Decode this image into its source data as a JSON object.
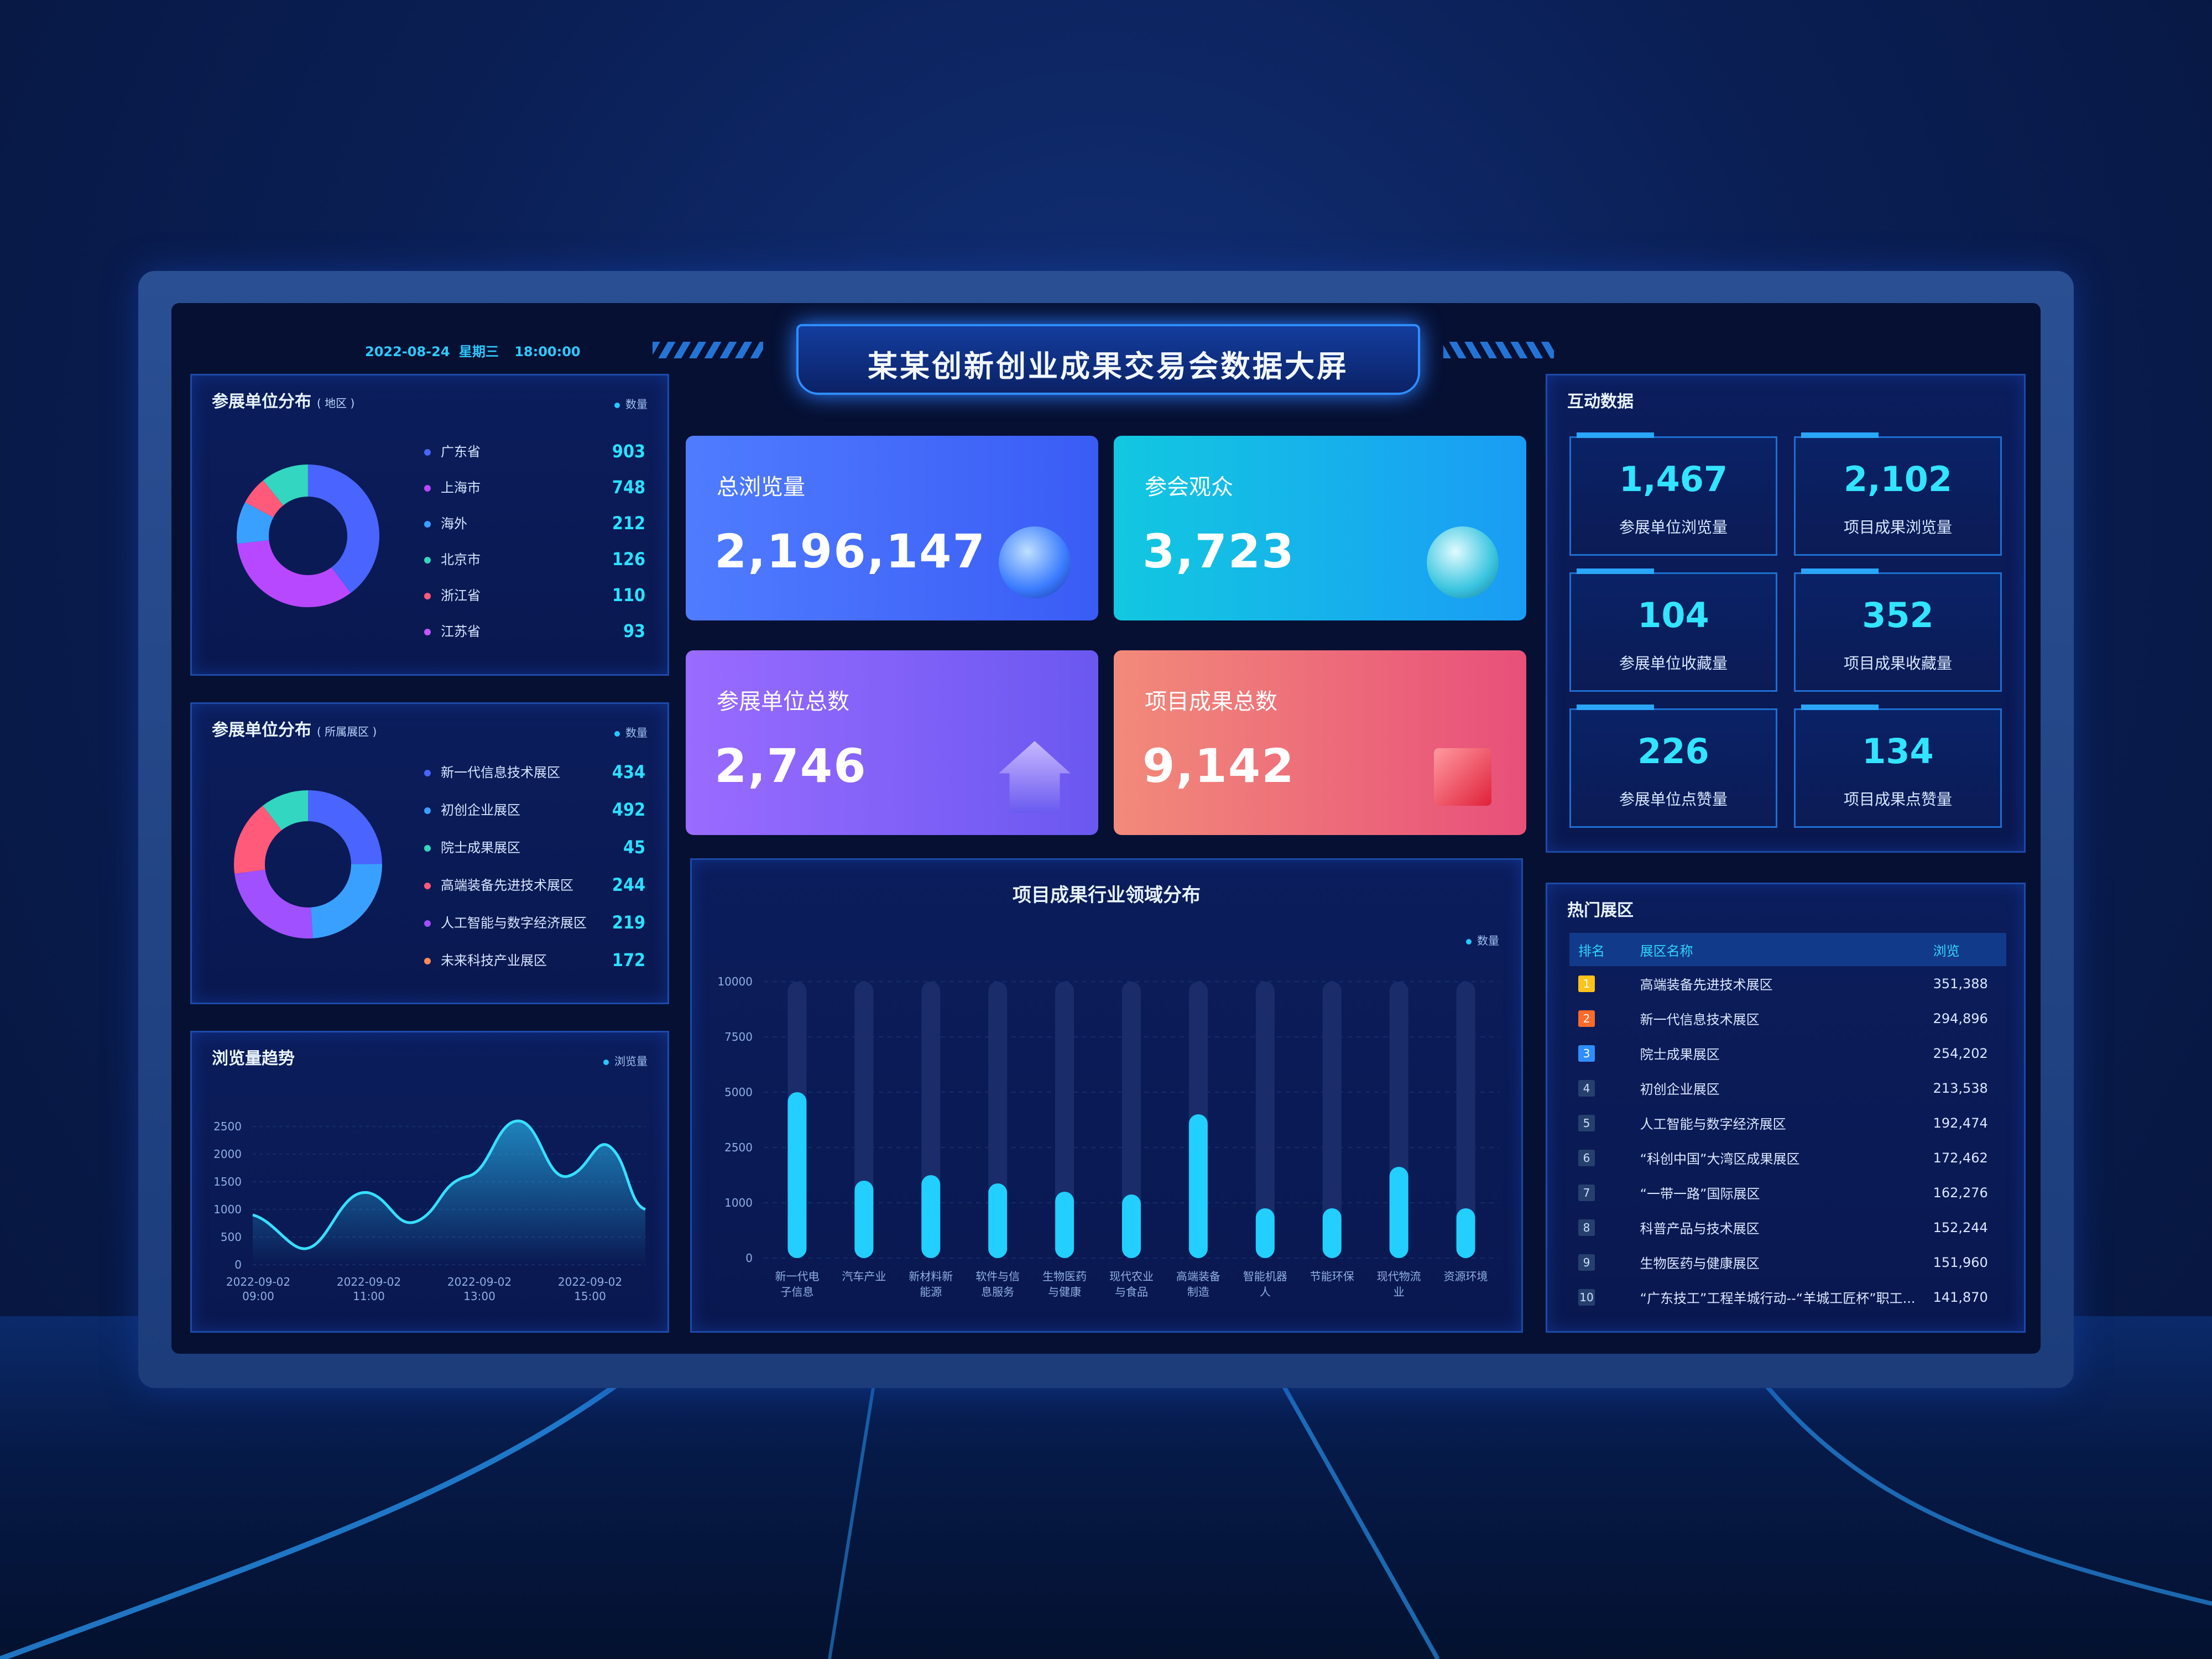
{
  "header": {
    "title": "某某创新创业成果交易会数据大屏",
    "date": "2022-08-24",
    "weekday": "星期三",
    "time": "18:00:00"
  },
  "region_panel": {
    "title": "参展单位分布",
    "subtitle": "( 地区 )",
    "legend": "数量",
    "items": [
      {
        "name": "广东省",
        "value": "903",
        "color": "#4a64ff"
      },
      {
        "name": "上海市",
        "value": "748",
        "color": "#b848ff"
      },
      {
        "name": "海外",
        "value": "212",
        "color": "#3aa0ff"
      },
      {
        "name": "北京市",
        "value": "126",
        "color": "#33d6c0"
      },
      {
        "name": "浙江省",
        "value": "110",
        "color": "#ff5a7a"
      },
      {
        "name": "江苏省",
        "value": "93",
        "color": "#c058ff"
      }
    ]
  },
  "zone_panel": {
    "title": "参展单位分布",
    "subtitle": "( 所属展区 )",
    "legend": "数量",
    "items": [
      {
        "name": "新一代信息技术展区",
        "value": "434",
        "color": "#4a64ff"
      },
      {
        "name": "初创企业展区",
        "value": "492",
        "color": "#3aa0ff"
      },
      {
        "name": "院士成果展区",
        "value": "45",
        "color": "#33d6c0"
      },
      {
        "name": "高端装备先进技术展区",
        "value": "244",
        "color": "#ff5a7a"
      },
      {
        "name": "人工智能与数字经济展区",
        "value": "219",
        "color": "#a050ff"
      },
      {
        "name": "未来科技产业展区",
        "value": "172",
        "color": "#ff8a5a"
      }
    ]
  },
  "trend_panel": {
    "title": "浏览量趋势",
    "legend": "浏览量",
    "yticks": [
      "2500",
      "2000",
      "1500",
      "1000",
      "500",
      "0"
    ],
    "xticks": [
      {
        "d": "2022-09-02",
        "t": "09:00"
      },
      {
        "d": "2022-09-02",
        "t": "11:00"
      },
      {
        "d": "2022-09-02",
        "t": "13:00"
      },
      {
        "d": "2022-09-02",
        "t": "15:00"
      }
    ]
  },
  "cards": [
    {
      "label": "总浏览量",
      "value": "2,196,147"
    },
    {
      "label": "参会观众",
      "value": "3,723"
    },
    {
      "label": "参展单位总数",
      "value": "2,746"
    },
    {
      "label": "项目成果总数",
      "value": "9,142"
    }
  ],
  "interact": {
    "title": "互动数据",
    "stats": [
      {
        "value": "1,467",
        "label": "参展单位浏览量"
      },
      {
        "value": "2,102",
        "label": "项目成果浏览量"
      },
      {
        "value": "104",
        "label": "参展单位收藏量"
      },
      {
        "value": "352",
        "label": "项目成果收藏量"
      },
      {
        "value": "226",
        "label": "参展单位点赞量"
      },
      {
        "value": "134",
        "label": "项目成果点赞量"
      }
    ]
  },
  "hot": {
    "title": "热门展区",
    "headers": [
      "排名",
      "展区名称",
      "浏览"
    ],
    "rows": [
      {
        "rank": "1",
        "name": "高端装备先进技术展区",
        "views": "351,388"
      },
      {
        "rank": "2",
        "name": "新一代信息技术展区",
        "views": "294,896"
      },
      {
        "rank": "3",
        "name": "院士成果展区",
        "views": "254,202"
      },
      {
        "rank": "4",
        "name": "初创企业展区",
        "views": "213,538"
      },
      {
        "rank": "5",
        "name": "人工智能与数字经济展区",
        "views": "192,474"
      },
      {
        "rank": "6",
        "name": "“科创中国”大湾区成果展区",
        "views": "172,462"
      },
      {
        "rank": "7",
        "name": "“一带一路”国际展区",
        "views": "162,276"
      },
      {
        "rank": "8",
        "name": "科普产品与技术展区",
        "views": "152,244"
      },
      {
        "rank": "9",
        "name": "生物医药与健康展区",
        "views": "151,960"
      },
      {
        "rank": "10",
        "name": "“广东技工”工程羊城行动--“羊城工匠杯”职工...",
        "views": "141,870"
      }
    ]
  },
  "industry_chart_title": "项目成果行业领域分布",
  "chart_data": [
    {
      "type": "pie",
      "title": "参展单位分布",
      "categories": [
        "广东省",
        "上海市",
        "海外",
        "北京市",
        "浙江省",
        "江苏省"
      ],
      "values": [
        903,
        748,
        212,
        126,
        110,
        93
      ]
    },
    {
      "type": "pie",
      "title": "参展单位分布",
      "categories": [
        "新一代信息技术展区",
        "初创企业展区",
        "院士成果展区",
        "高端装备先进技术展区",
        "人工智能与数字经济展区",
        "未来科技产业展区"
      ],
      "values": [
        434,
        492,
        45,
        244,
        219,
        172
      ]
    },
    {
      "type": "area",
      "title": "浏览量趋势",
      "series": [
        {
          "name": "浏览量",
          "values": [
            900,
            500,
            1250,
            800,
            1500,
            2450,
            1500,
            1950,
            700
          ]
        }
      ],
      "ylim": [
        0,
        2500
      ]
    },
    {
      "type": "bar",
      "title": "项目成果行业领域分布",
      "legend": "数量",
      "categories": [
        "新一代电子信息",
        "汽车产业",
        "新材料新能源",
        "软件与信息服务",
        "生物医药与健康",
        "现代农业与食品",
        "高端装备制造",
        "智能机器人",
        "节能环保",
        "现代物流业",
        "资源环境"
      ],
      "values": [
        6000,
        2800,
        3000,
        2700,
        2400,
        2300,
        5200,
        1800,
        1800,
        3300,
        1800
      ],
      "yticks": [
        "10000",
        "7500",
        "5000",
        "2500",
        "1000",
        "0"
      ]
    }
  ]
}
